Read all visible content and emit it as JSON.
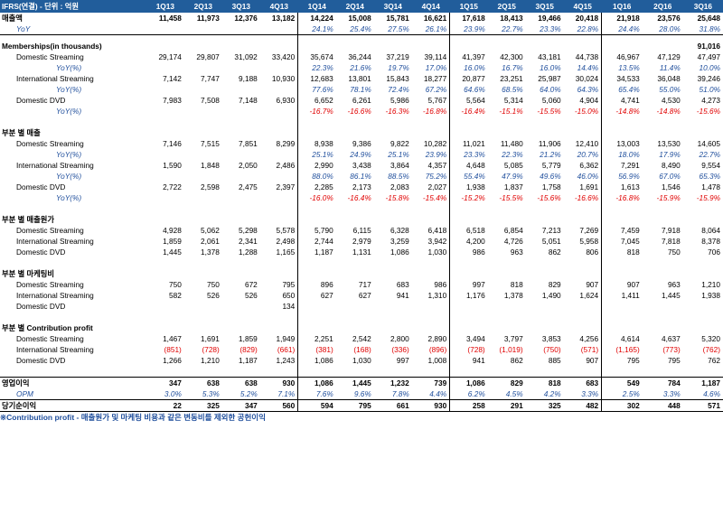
{
  "header": {
    "title": "IFRS(연결) - 단위 : 억원",
    "quarters": [
      "1Q13",
      "2Q13",
      "3Q13",
      "4Q13",
      "1Q14",
      "2Q14",
      "3Q14",
      "4Q14",
      "1Q15",
      "2Q15",
      "3Q15",
      "4Q15",
      "1Q16",
      "2Q16",
      "3Q16"
    ]
  },
  "revenue": {
    "label": "매출액",
    "values": [
      "11,458",
      "11,973",
      "12,376",
      "13,182",
      "14,224",
      "15,008",
      "15,781",
      "16,621",
      "17,618",
      "18,413",
      "19,466",
      "20,418",
      "21,918",
      "23,576",
      "25,648"
    ],
    "yoy_label": "YoY",
    "yoy": [
      "",
      "",
      "",
      "",
      "24.1%",
      "25.4%",
      "27.5%",
      "26.1%",
      "23.9%",
      "22.7%",
      "23.3%",
      "22.8%",
      "24.4%",
      "28.0%",
      "31.8%"
    ]
  },
  "memberships": {
    "title": "Memberships(in thousands)",
    "total": [
      "",
      "",
      "",
      "",
      "",
      "",
      "",
      "",
      "",
      "",
      "",
      "",
      "",
      "",
      "91,016"
    ],
    "rows": [
      {
        "label": "Domestic Streaming",
        "values": [
          "29,174",
          "29,807",
          "31,092",
          "33,420",
          "35,674",
          "36,244",
          "37,219",
          "39,114",
          "41,397",
          "42,300",
          "43,181",
          "44,738",
          "46,967",
          "47,129",
          "47,497"
        ],
        "yoy": [
          "",
          "",
          "",
          "",
          "22.3%",
          "21.6%",
          "19.7%",
          "17.0%",
          "16.0%",
          "16.7%",
          "16.0%",
          "14.4%",
          "13.5%",
          "11.4%",
          "10.0%"
        ]
      },
      {
        "label": "International Streaming",
        "values": [
          "7,142",
          "7,747",
          "9,188",
          "10,930",
          "12,683",
          "13,801",
          "15,843",
          "18,277",
          "20,877",
          "23,251",
          "25,987",
          "30,024",
          "34,533",
          "36,048",
          "39,246"
        ],
        "yoy": [
          "",
          "",
          "",
          "",
          "77.6%",
          "78.1%",
          "72.4%",
          "67.2%",
          "64.6%",
          "68.5%",
          "64.0%",
          "64.3%",
          "65.4%",
          "55.0%",
          "51.0%"
        ]
      },
      {
        "label": "Domestic DVD",
        "values": [
          "7,983",
          "7,508",
          "7,148",
          "6,930",
          "6,652",
          "6,261",
          "5,986",
          "5,767",
          "5,564",
          "5,314",
          "5,060",
          "4,904",
          "4,741",
          "4,530",
          "4,273"
        ],
        "yoy": [
          "",
          "",
          "",
          "",
          "-16.7%",
          "-16.6%",
          "-16.3%",
          "-16.8%",
          "-16.4%",
          "-15.1%",
          "-15.5%",
          "-15.0%",
          "-14.8%",
          "-14.8%",
          "-15.6%"
        ]
      }
    ],
    "yoy_label": "YoY(%)"
  },
  "segment_revenue": {
    "title": "부분 별 매출",
    "rows": [
      {
        "label": "Domestic Streaming",
        "values": [
          "7,146",
          "7,515",
          "7,851",
          "8,299",
          "8,938",
          "9,386",
          "9,822",
          "10,282",
          "11,021",
          "11,480",
          "11,906",
          "12,410",
          "13,003",
          "13,530",
          "14,605"
        ],
        "yoy": [
          "",
          "",
          "",
          "",
          "25.1%",
          "24.9%",
          "25.1%",
          "23.9%",
          "23.3%",
          "22.3%",
          "21.2%",
          "20.7%",
          "18.0%",
          "17.9%",
          "22.7%"
        ]
      },
      {
        "label": "International Streaming",
        "values": [
          "1,590",
          "1,848",
          "2,050",
          "2,486",
          "2,990",
          "3,438",
          "3,864",
          "4,357",
          "4,648",
          "5,085",
          "5,779",
          "6,362",
          "7,291",
          "8,490",
          "9,554"
        ],
        "yoy": [
          "",
          "",
          "",
          "",
          "88.0%",
          "86.1%",
          "88.5%",
          "75.2%",
          "55.4%",
          "47.9%",
          "49.6%",
          "46.0%",
          "56.9%",
          "67.0%",
          "65.3%"
        ]
      },
      {
        "label": "Domestic DVD",
        "values": [
          "2,722",
          "2,598",
          "2,475",
          "2,397",
          "2,285",
          "2,173",
          "2,083",
          "2,027",
          "1,938",
          "1,837",
          "1,758",
          "1,691",
          "1,613",
          "1,546",
          "1,478"
        ],
        "yoy": [
          "",
          "",
          "",
          "",
          "-16.0%",
          "-16.4%",
          "-15.8%",
          "-15.4%",
          "-15.2%",
          "-15.5%",
          "-15.6%",
          "-16.6%",
          "-16.8%",
          "-15.9%",
          "-15.9%"
        ]
      }
    ],
    "yoy_label": "YoY(%)"
  },
  "segment_cost": {
    "title": "부분 별 매출원가",
    "rows": [
      {
        "label": "Domestic Streaming",
        "values": [
          "4,928",
          "5,062",
          "5,298",
          "5,578",
          "5,790",
          "6,115",
          "6,328",
          "6,418",
          "6,518",
          "6,854",
          "7,213",
          "7,269",
          "7,459",
          "7,918",
          "8,064"
        ]
      },
      {
        "label": "International Streaming",
        "values": [
          "1,859",
          "2,061",
          "2,341",
          "2,498",
          "2,744",
          "2,979",
          "3,259",
          "3,942",
          "4,200",
          "4,726",
          "5,051",
          "5,958",
          "7,045",
          "7,818",
          "8,378"
        ]
      },
      {
        "label": "Domestic DVD",
        "values": [
          "1,445",
          "1,378",
          "1,288",
          "1,165",
          "1,187",
          "1,131",
          "1,086",
          "1,030",
          "986",
          "963",
          "862",
          "806",
          "818",
          "750",
          "706"
        ]
      }
    ]
  },
  "segment_marketing": {
    "title": "부분 별 마케팅비",
    "rows": [
      {
        "label": "Domestic Streaming",
        "values": [
          "750",
          "750",
          "672",
          "795",
          "896",
          "717",
          "683",
          "986",
          "997",
          "818",
          "829",
          "907",
          "907",
          "963",
          "1,210"
        ]
      },
      {
        "label": "International Streaming",
        "values": [
          "582",
          "526",
          "526",
          "650",
          "627",
          "627",
          "941",
          "1,310",
          "1,176",
          "1,378",
          "1,490",
          "1,624",
          "1,411",
          "1,445",
          "1,938"
        ]
      },
      {
        "label": "Domestic DVD",
        "values": [
          "",
          "",
          "",
          "134",
          "",
          "",
          "",
          "",
          "",
          "",
          "",
          "",
          "",
          "",
          ""
        ]
      }
    ]
  },
  "segment_contribution": {
    "title": "부분 별 Contribution profit",
    "rows": [
      {
        "label": "Domestic Streaming",
        "values": [
          "1,467",
          "1,691",
          "1,859",
          "1,949",
          "2,251",
          "2,542",
          "2,800",
          "2,890",
          "3,494",
          "3,797",
          "3,853",
          "4,256",
          "4,614",
          "4,637",
          "5,320"
        ]
      },
      {
        "label": "International Streaming",
        "values": [
          "(851)",
          "(728)",
          "(829)",
          "(661)",
          "(381)",
          "(168)",
          "(336)",
          "(896)",
          "(728)",
          "(1,019)",
          "(750)",
          "(571)",
          "(1,165)",
          "(773)",
          "(762)"
        ]
      },
      {
        "label": "Domestic DVD",
        "values": [
          "1,266",
          "1,210",
          "1,187",
          "1,243",
          "1,086",
          "1,030",
          "997",
          "1,008",
          "941",
          "862",
          "885",
          "907",
          "795",
          "795",
          "762"
        ]
      }
    ]
  },
  "operating": {
    "label": "영업이익",
    "values": [
      "347",
      "638",
      "638",
      "930",
      "1,086",
      "1,445",
      "1,232",
      "739",
      "1,086",
      "829",
      "818",
      "683",
      "549",
      "784",
      "1,187"
    ],
    "opm_label": "OPM",
    "opm": [
      "3.0%",
      "5.3%",
      "5.2%",
      "7.1%",
      "7.6%",
      "9.6%",
      "7.8%",
      "4.4%",
      "6.2%",
      "4.5%",
      "4.2%",
      "3.3%",
      "2.5%",
      "3.3%",
      "4.6%"
    ]
  },
  "net": {
    "label": "당기순이익",
    "values": [
      "22",
      "325",
      "347",
      "560",
      "594",
      "795",
      "661",
      "930",
      "258",
      "291",
      "325",
      "482",
      "302",
      "448",
      "571"
    ]
  },
  "note": "※Contribution profit - 매출원가 및 마케팅 비용과 같은 변동비를 제외한 공헌이익"
}
